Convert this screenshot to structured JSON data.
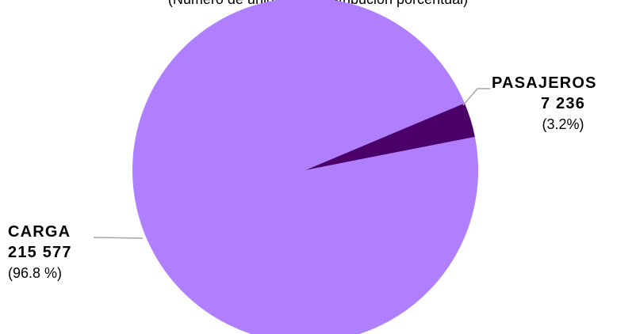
{
  "chart_data": {
    "type": "pie",
    "subtitle": "(Número de unidades y distribución porcentual)",
    "slices": [
      {
        "label": "CARGA",
        "value": 215577,
        "value_text": "215 577",
        "percent": 96.8,
        "percent_text": "(96.8 %)",
        "color": "#b07fff"
      },
      {
        "label": "PASAJEROS",
        "value": 7236,
        "value_text": "7 236",
        "percent": 3.2,
        "percent_text": "(3.2%)",
        "color": "#4a0068"
      }
    ],
    "legend": "none"
  }
}
